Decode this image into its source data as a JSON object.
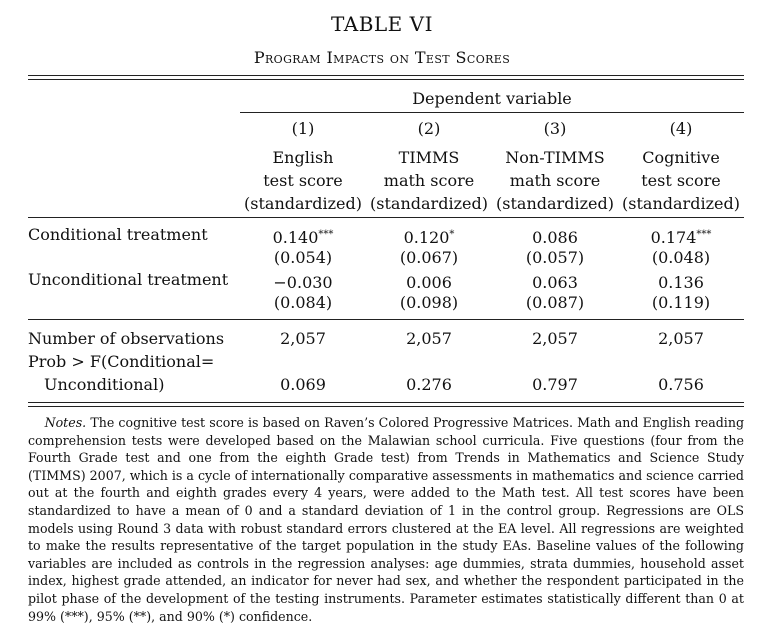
{
  "table": {
    "title": "TABLE VI",
    "subtitle": "Program Impacts on Test Scores",
    "dep_var_header": "Dependent variable",
    "columns": [
      {
        "num": "(1)",
        "line1": "English",
        "line2": "test score",
        "line3": "(standardized)"
      },
      {
        "num": "(2)",
        "line1": "TIMMS",
        "line2": "math score",
        "line3": "(standardized)"
      },
      {
        "num": "(3)",
        "line1": "Non-TIMMS",
        "line2": "math score",
        "line3": "(standardized)"
      },
      {
        "num": "(4)",
        "line1": "Cognitive",
        "line2": "test score",
        "line3": "(standardized)"
      }
    ],
    "rows": [
      {
        "label": "Conditional treatment",
        "estimates": [
          {
            "value": "0.140",
            "stars": "***"
          },
          {
            "value": "0.120",
            "stars": "*"
          },
          {
            "value": "0.086",
            "stars": ""
          },
          {
            "value": "0.174",
            "stars": "***"
          }
        ],
        "se": [
          "(0.054)",
          "(0.067)",
          "(0.057)",
          "(0.048)"
        ]
      },
      {
        "label": "Unconditional treatment",
        "estimates": [
          {
            "value": "−0.030",
            "stars": ""
          },
          {
            "value": "0.006",
            "stars": ""
          },
          {
            "value": "0.063",
            "stars": ""
          },
          {
            "value": "0.136",
            "stars": ""
          }
        ],
        "se": [
          "(0.084)",
          "(0.098)",
          "(0.087)",
          "(0.119)"
        ]
      }
    ],
    "observations": {
      "label": "Number of observations",
      "values": [
        "2,057",
        "2,057",
        "2,057",
        "2,057"
      ]
    },
    "prob_test": {
      "label_line1": "Prob > F(Conditional=",
      "label_line2": "Unconditional)",
      "values": [
        "0.069",
        "0.276",
        "0.797",
        "0.756"
      ]
    }
  },
  "notes": {
    "lead": "Notes.",
    "text": "The cognitive test score is based on Raven’s Colored Progressive Matrices. Math and English reading comprehension tests were developed based on the Malawian school curricula. Five questions (four from the Fourth Grade test and one from the eighth Grade test) from Trends in Mathematics and Science Study (TIMMS) 2007, which is a cycle of internationally comparative assessments in mathematics and science carried out at the fourth and eighth grades every 4 years, were added to the Math test. All test scores have been standardized to have a mean of 0 and a standard deviation of 1 in the control group. Regressions are OLS models using Round 3 data with robust standard errors clustered at the EA level. All regressions are weighted to make the results representative of the target population in the study EAs. Baseline values of the following variables are included as controls in the regression analyses: age dummies, strata dummies, household asset index, highest grade attended, an indicator for never had sex, and whether the respondent participated in the pilot phase of the development of the testing instruments. Parameter estimates statistically different than 0 at 99% (***), 95% (**), and 90% (*) confidence."
  }
}
